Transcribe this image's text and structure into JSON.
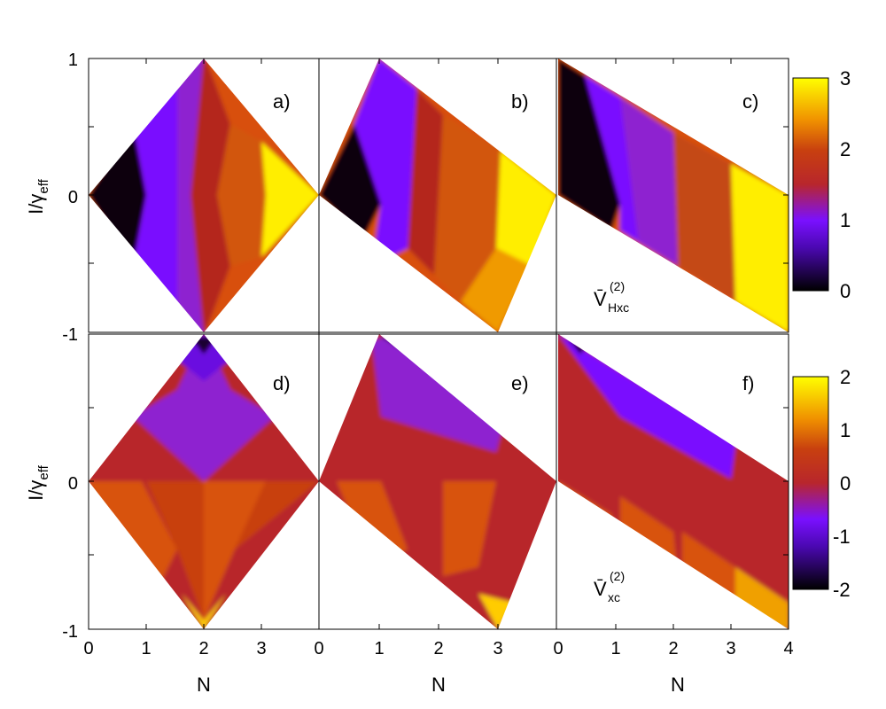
{
  "chart_data": [
    {
      "type": "heatmap",
      "panels_row": "top",
      "colorbar": {
        "min": 0,
        "max": 3,
        "ticks": [
          "0",
          "1",
          "2",
          "3"
        ],
        "colormap": [
          "#000000",
          "#7a10ff",
          "#b8262c",
          "#d8520a",
          "#f2a000",
          "#ffff00"
        ]
      },
      "quantity_label": {
        "base": "V̄",
        "sup": "(2)",
        "sub": "Hxc"
      },
      "ylabel": {
        "base": "I/γ",
        "sub": "eff"
      },
      "yticks": [
        "1",
        "0",
        "-1"
      ],
      "panels": [
        {
          "label": "a)",
          "N_range": [
            0,
            4
          ],
          "region": "diamond",
          "region_values": [
            0.2,
            1.0,
            1.75,
            2.3,
            3.0
          ]
        },
        {
          "label": "b)",
          "N_range": [
            0,
            4
          ],
          "region": "parallelogram",
          "region_values": [
            0.15,
            0.9,
            1.75,
            2.3,
            3.0
          ]
        },
        {
          "label": "c)",
          "N_range": [
            0,
            4
          ],
          "region": "band",
          "region_values": [
            0.1,
            0.8,
            1.75,
            2.3,
            3.0
          ]
        }
      ]
    },
    {
      "type": "heatmap",
      "panels_row": "bottom",
      "colorbar": {
        "min": -2,
        "max": 2,
        "ticks": [
          "2",
          "1",
          "0",
          "-1",
          "-2"
        ],
        "colormap": [
          "#000000",
          "#7a10ff",
          "#b8262c",
          "#d8520a",
          "#f2a000",
          "#ffff00"
        ]
      },
      "quantity_label": {
        "base": "V̄",
        "sup": "(2)",
        "sub": "xc"
      },
      "ylabel": {
        "base": "I/γ",
        "sub": "eff"
      },
      "yticks": [
        "0",
        "-1"
      ],
      "xlabel": "N",
      "xticks_panel_ab": [
        "0",
        "1",
        "2",
        "3"
      ],
      "xticks_panel_c": [
        "0",
        "1",
        "2",
        "3",
        "4"
      ],
      "panels": [
        {
          "label": "d)",
          "N_range": [
            0,
            4
          ],
          "region": "diamond"
        },
        {
          "label": "e)",
          "N_range": [
            0,
            4
          ],
          "region": "parallelogram"
        },
        {
          "label": "f)",
          "N_range": [
            0,
            4
          ],
          "region": "band"
        }
      ]
    }
  ]
}
